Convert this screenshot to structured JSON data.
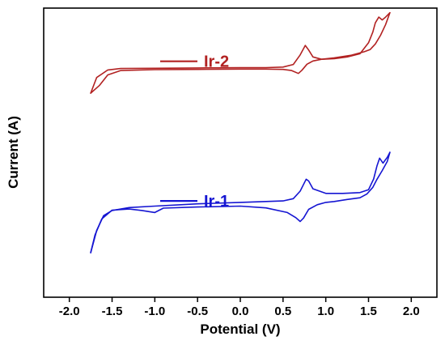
{
  "chart_data": {
    "type": "line",
    "title": "",
    "xlabel": "Potential (V)",
    "ylabel": "Current (A)",
    "xlim": [
      -2.3,
      2.3
    ],
    "ylim": [
      0,
      100
    ],
    "x_ticks": [
      -2.0,
      -1.5,
      -1.0,
      -0.5,
      0.0,
      0.5,
      1.0,
      1.5,
      2.0
    ],
    "x_tick_labels": [
      "-2.0",
      "-1.5",
      "-1.0",
      "-0.5",
      "0.0",
      "0.5",
      "1.0",
      "1.5",
      "2.0"
    ],
    "y_tick_labels": false,
    "grid": false,
    "legend": "inside, one label per curve (upper-left of each curve)",
    "series": [
      {
        "name": "Ir-2",
        "color": "#b22222",
        "loops": [
          {
            "x": [
              -1.75,
              -1.68,
              -1.55,
              -1.4,
              -1.0,
              -0.5,
              0.0,
              0.3,
              0.5,
              0.62,
              0.7,
              0.76,
              0.8,
              0.85,
              0.95,
              1.1,
              1.25,
              1.4,
              1.5,
              1.55,
              1.58,
              1.62,
              1.66,
              1.7,
              1.74,
              1.75
            ],
            "y": [
              70.6,
              76.0,
              78.6,
              79.1,
              79.2,
              79.3,
              79.4,
              79.4,
              79.6,
              80.5,
              83.8,
              87.1,
              85.5,
              83.1,
              82.3,
              82.5,
              83.1,
              84.2,
              88.0,
              91.7,
              94.9,
              96.9,
              95.9,
              96.9,
              98.1,
              98.4
            ]
          },
          {
            "x": [
              1.75,
              1.7,
              1.64,
              1.58,
              1.52,
              1.45,
              1.3,
              1.1,
              0.95,
              0.85,
              0.78,
              0.72,
              0.68,
              0.6,
              0.5,
              0.3,
              0.0,
              -0.5,
              -1.0,
              -1.4,
              -1.55,
              -1.65,
              -1.75
            ],
            "y": [
              98.4,
              94.3,
              90.6,
              87.6,
              85.7,
              84.9,
              83.7,
              82.8,
              82.3,
              81.7,
              80.6,
              78.5,
              77.4,
              78.4,
              78.8,
              78.9,
              78.9,
              78.8,
              78.7,
              78.4,
              76.9,
              73.2,
              70.6
            ]
          }
        ]
      },
      {
        "name": "Ir-1",
        "color": "#1515d2",
        "loops": [
          {
            "x": [
              -1.75,
              -1.68,
              -1.6,
              -1.5,
              -1.3,
              -1.0,
              -0.5,
              0.0,
              0.3,
              0.5,
              0.62,
              0.7,
              0.77,
              0.8,
              0.85,
              1.0,
              1.2,
              1.4,
              1.5,
              1.56,
              1.6,
              1.63,
              1.67,
              1.72,
              1.75
            ],
            "y": [
              15.4,
              23.1,
              28.2,
              30.0,
              31.0,
              31.5,
              32.3,
              32.8,
              33.1,
              33.3,
              34.1,
              36.7,
              40.8,
              40.2,
              37.5,
              35.9,
              35.9,
              36.2,
              37.2,
              40.9,
              45.5,
              48.1,
              46.4,
              48.4,
              50.1
            ]
          },
          {
            "x": [
              1.75,
              1.72,
              1.66,
              1.6,
              1.55,
              1.48,
              1.4,
              1.25,
              1.1,
              1.0,
              0.9,
              0.8,
              0.74,
              0.7,
              0.65,
              0.55,
              0.3,
              0.0,
              -0.5,
              -0.9,
              -1.0,
              -1.15,
              -1.3,
              -1.5,
              -1.62,
              -1.7,
              -1.75
            ],
            "y": [
              50.1,
              47.0,
              43.8,
              40.8,
              38.0,
              35.7,
              34.4,
              33.8,
              33.1,
              32.8,
              32.0,
              30.4,
              27.4,
              26.2,
              27.5,
              29.3,
              30.9,
              31.5,
              31.2,
              30.8,
              29.3,
              30.0,
              30.5,
              30.1,
              27.1,
              21.5,
              15.4
            ]
          }
        ]
      }
    ]
  }
}
